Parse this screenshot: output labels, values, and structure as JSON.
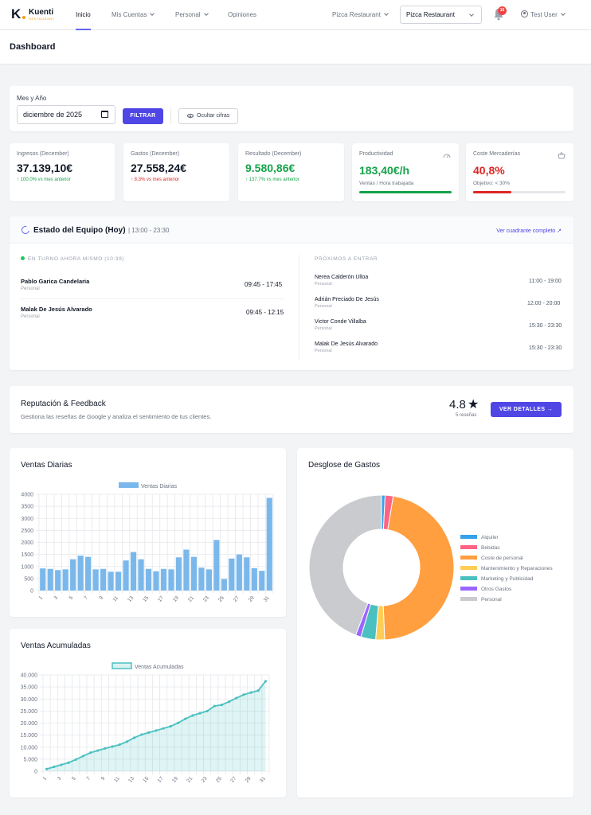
{
  "navbar": {
    "logo_name": "Kuenti",
    "logo_sub": "RESTAURANT",
    "nav_inicio": "Inicio",
    "nav_cuentas": "Mis Cuentas",
    "nav_personal": "Personal",
    "nav_opiniones": "Opiniones",
    "restaurant_menu": "Pizca Restaurant",
    "restaurant_select": "Pizca Restaurant",
    "notification_count": "10",
    "user_name": "Test User"
  },
  "page": {
    "title": "Dashboard"
  },
  "filter": {
    "label": "Mes y Año",
    "date_value": "diciembre de 2025",
    "filter_button": "FILTRAR",
    "hide_button": "Ocultar cifras"
  },
  "kpis": {
    "ingresos": {
      "label": "Ingresos (December)",
      "value": "37.139,10€",
      "delta": "↑ 100.0% vs mes anterior"
    },
    "gastos": {
      "label": "Gastos (December)",
      "value": "27.558,24€",
      "delta": "↑ 8.3% vs mes anterior"
    },
    "resultado": {
      "label": "Resultado (December)",
      "value": "9.580,86€",
      "delta": "↑ 137.7% vs mes anterior"
    },
    "productividad": {
      "label": "Productividad",
      "value": "183,40€/h",
      "sub": "Ventas / Hora trabajada",
      "progress": 1.0
    },
    "coste": {
      "label": "Coste Mercaderías",
      "value": "40,8%",
      "sub": "Objetivo: < 30%",
      "progress": 0.41
    }
  },
  "team": {
    "title": "Estado del Equipo (Hoy)",
    "hours": "| 13:00 - 23:30",
    "link": "Ver cuadrante completo",
    "on_shift_label": "EN TURNO AHORA MISMO (10:39)",
    "next_label": "PRÓXIMOS A ENTRAR",
    "on_shift": [
      {
        "name": "Pablo Garica Candelaria",
        "role": "Personal",
        "time": "09:45 - 17:45"
      },
      {
        "name": "Malak De Jesús Alvarado",
        "role": "Personal",
        "time": "09:45 - 12:15"
      }
    ],
    "upcoming": [
      {
        "name": "Nerea Calderón Ulloa",
        "role": "Personal",
        "time": "11:00 - 19:00"
      },
      {
        "name": "Adrián Preciado De Jesús",
        "role": "Personal",
        "time": "12:00 - 20:00"
      },
      {
        "name": "Victor Conde Villalba",
        "role": "Personal",
        "time": "15:30 - 23:30"
      },
      {
        "name": "Malak De Jesús Alvarado",
        "role": "Personal",
        "time": "15:30 - 23:30"
      }
    ]
  },
  "reputation": {
    "title": "Reputación & Feedback",
    "subtitle": "Gestiona las reseñas de Google y analiza el sentimiento de tus clientes.",
    "score": "4.8",
    "count": "5 reseñas",
    "button": "VER DETALLES →"
  },
  "charts": {
    "daily_title": "Ventas Diarias",
    "cumulative_title": "Ventas Acumuladas",
    "expenses_title": "Desglose de Gastos"
  },
  "chart_data": [
    {
      "type": "bar",
      "legend": "Ventas Diarias",
      "categories": [
        "1",
        "2",
        "3",
        "4",
        "5",
        "6",
        "7",
        "8",
        "9",
        "10",
        "11",
        "12",
        "13",
        "14",
        "15",
        "16",
        "17",
        "18",
        "19",
        "20",
        "21",
        "22",
        "23",
        "24",
        "25",
        "26",
        "27",
        "28",
        "29",
        "30",
        "31"
      ],
      "values": [
        920,
        900,
        850,
        880,
        1300,
        1450,
        1400,
        880,
        900,
        780,
        780,
        1250,
        1600,
        1300,
        900,
        800,
        900,
        880,
        1380,
        1700,
        1400,
        950,
        880,
        2100,
        480,
        1330,
        1500,
        1380,
        930,
        820,
        3850
      ],
      "ylim": [
        0,
        4000
      ],
      "yticks": [
        0,
        500,
        1000,
        1500,
        2000,
        2500,
        3000,
        3500,
        4000
      ],
      "xtick_labels": [
        "1",
        "3",
        "5",
        "7",
        "9",
        "11",
        "13",
        "15",
        "17",
        "19",
        "21",
        "23",
        "25",
        "27",
        "29",
        "31"
      ],
      "color": "#7ab8ec"
    },
    {
      "type": "area",
      "legend": "Ventas Acumuladas",
      "categories": [
        "1",
        "2",
        "3",
        "4",
        "5",
        "6",
        "7",
        "8",
        "9",
        "10",
        "11",
        "12",
        "13",
        "14",
        "15",
        "16",
        "17",
        "18",
        "19",
        "20",
        "21",
        "22",
        "23",
        "24",
        "25",
        "26",
        "27",
        "28",
        "29",
        "30",
        "31"
      ],
      "values": [
        920,
        1820,
        2670,
        3550,
        4850,
        6300,
        7700,
        8580,
        9480,
        10260,
        11040,
        12290,
        13890,
        15190,
        16090,
        16890,
        17790,
        18670,
        20050,
        21750,
        23150,
        24100,
        24980,
        27080,
        27560,
        28890,
        30390,
        31770,
        32700,
        33520,
        37370
      ],
      "ylim": [
        0,
        40000
      ],
      "yticks": [
        "0",
        "5.000",
        "10.000",
        "15.000",
        "20.000",
        "25.000",
        "30.000",
        "35.000",
        "40.000"
      ],
      "xtick_labels": [
        "1",
        "3",
        "5",
        "7",
        "9",
        "11",
        "13",
        "15",
        "17",
        "19",
        "21",
        "23",
        "25",
        "27",
        "29",
        "31"
      ],
      "color": "#4bc0c0"
    },
    {
      "type": "pie",
      "legend_position": "right",
      "labels": [
        "Alquiler",
        "Bebidas",
        "Coste de personal",
        "Mantenimiento y Reparaciones",
        "Marketing y Publicidad",
        "Otros Gastos",
        "Personal"
      ],
      "values": [
        0.8,
        1.8,
        46.7,
        2.0,
        3.3,
        1.2,
        44.2
      ],
      "colors": [
        "#36a2eb",
        "#ff6384",
        "#ff9f40",
        "#ffcd56",
        "#4bc0c0",
        "#9966ff",
        "#c9cbcf"
      ]
    }
  ]
}
